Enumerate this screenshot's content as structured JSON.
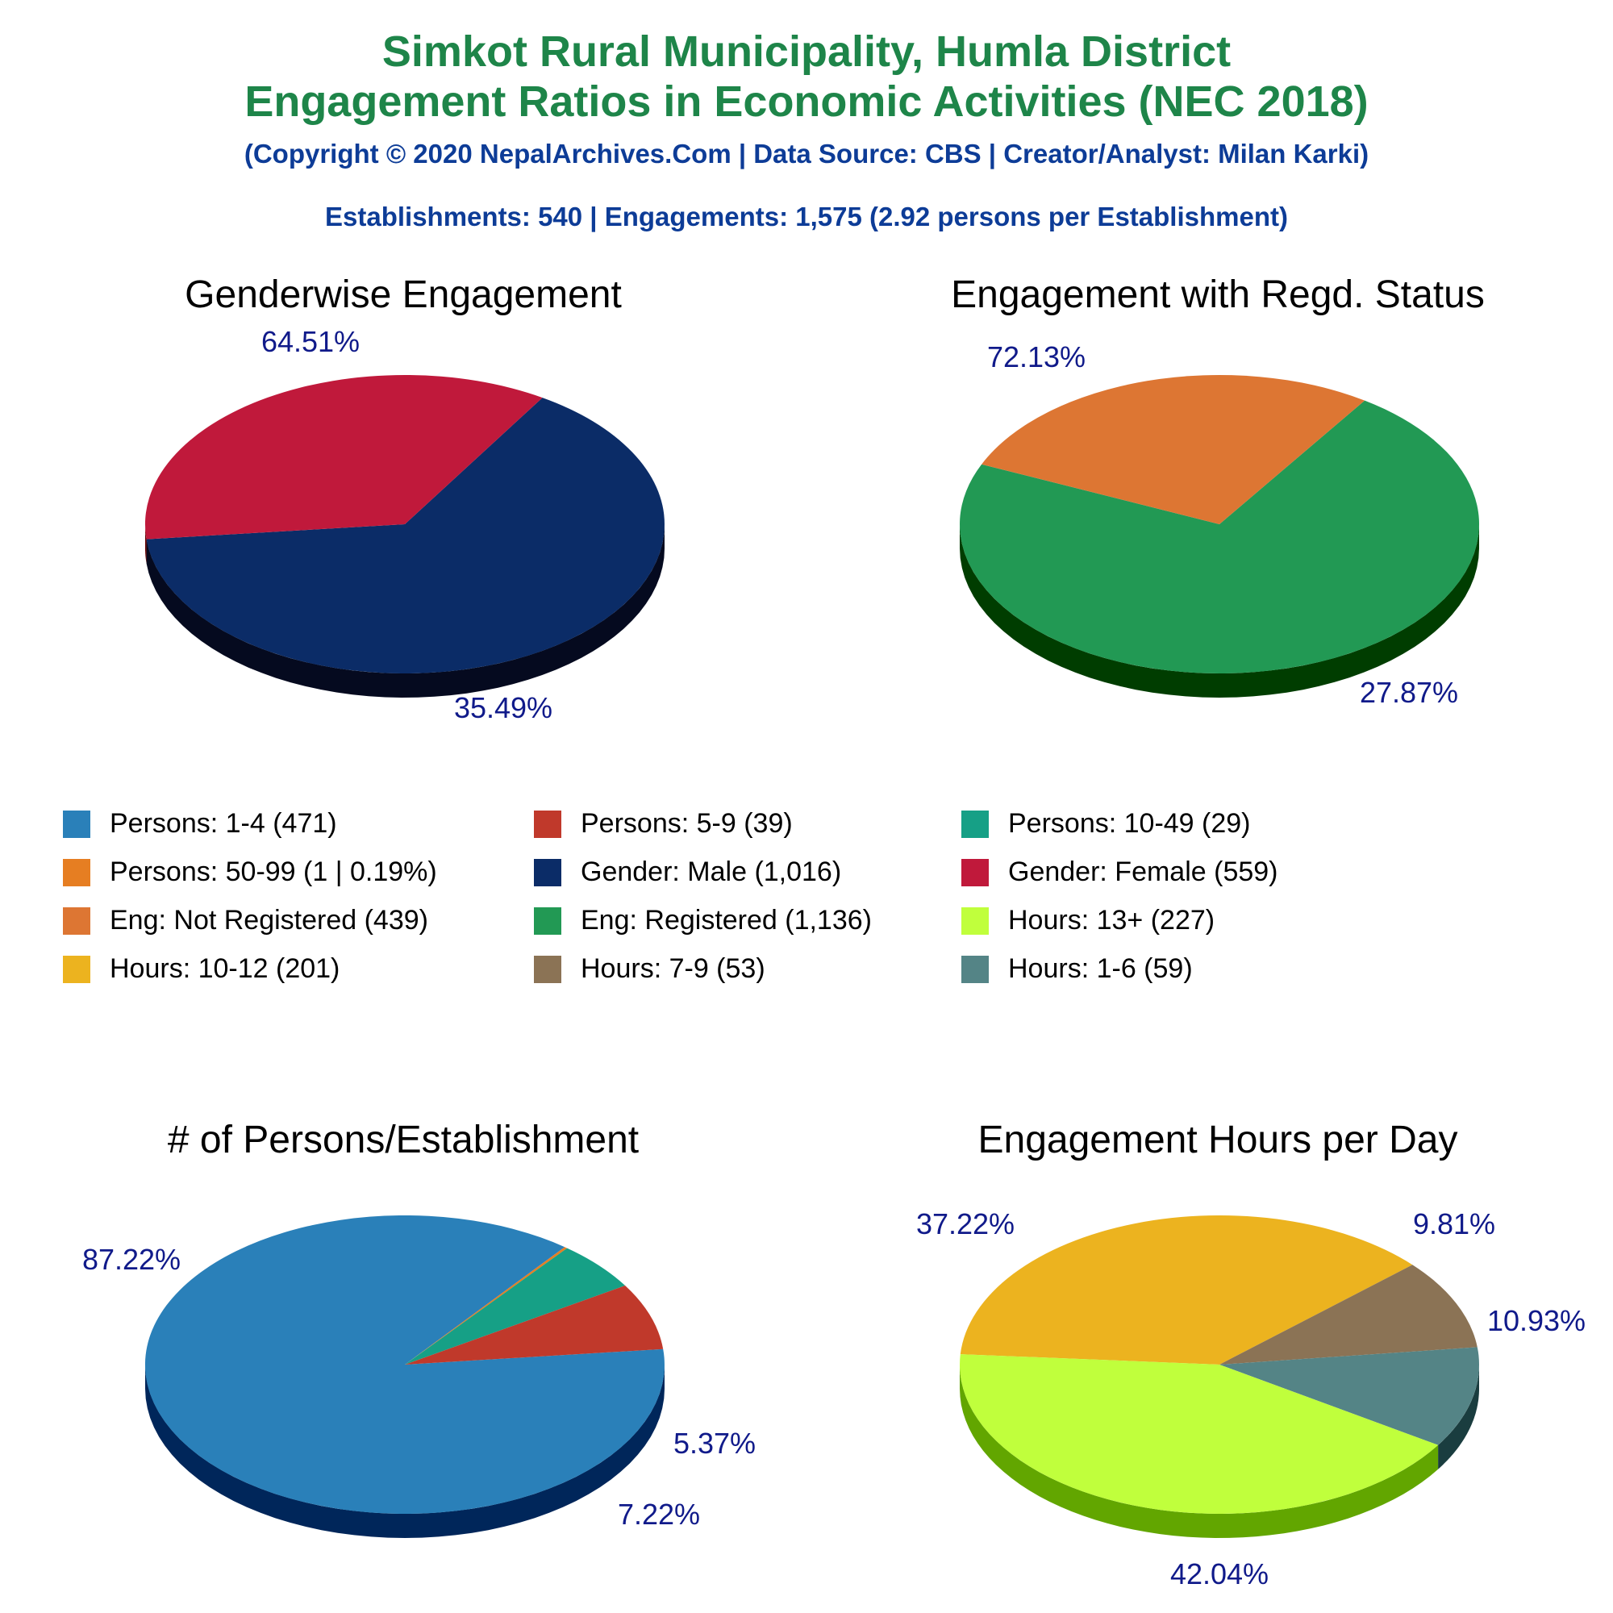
{
  "header": {
    "title_line1": "Simkot Rural Municipality, Humla District",
    "title_line2": "Engagement Ratios in Economic Activities (NEC 2018)",
    "copyright": "(Copyright © 2020 NepalArchives.Com | Data Source: CBS | Creator/Analyst: Milan Karki)",
    "summary": "Establishments: 540 | Engagements: 1,575 (2.92 persons per Establishment)"
  },
  "legend": [
    {
      "label": "Persons: 1-4 (471)",
      "color": "#2a80b9"
    },
    {
      "label": "Persons: 5-9 (39)",
      "color": "#c0392b"
    },
    {
      "label": "Persons: 10-49 (29)",
      "color": "#16a086"
    },
    {
      "label": "Persons: 50-99 (1 | 0.19%)",
      "color": "#e67e22"
    },
    {
      "label": "Gender: Male (1,016)",
      "color": "#0b2c67"
    },
    {
      "label": "Gender: Female (559)",
      "color": "#c0193b"
    },
    {
      "label": "Eng: Not Registered (439)",
      "color": "#dd7633"
    },
    {
      "label": "Eng: Registered (1,136)",
      "color": "#229954"
    },
    {
      "label": "Hours: 13+ (227)",
      "color": "#c0ff3c"
    },
    {
      "label": "Hours: 10-12 (201)",
      "color": "#ecb31f"
    },
    {
      "label": "Hours: 7-9 (53)",
      "color": "#8b7355"
    },
    {
      "label": "Hours: 1-6 (59)",
      "color": "#548486"
    }
  ],
  "chart_data": [
    {
      "type": "pie",
      "title": "Genderwise Engagement",
      "slices": [
        {
          "name": "Gender: Male",
          "value": 64.51,
          "label": "64.51%",
          "color": "#0b2c67",
          "side": "#050a1f"
        },
        {
          "name": "Gender: Female",
          "value": 35.49,
          "label": "35.49%",
          "color": "#c0193b",
          "side": "#620000"
        }
      ]
    },
    {
      "type": "pie",
      "title": "Engagement with Regd. Status",
      "slices": [
        {
          "name": "Eng: Registered",
          "value": 72.13,
          "label": "72.13%",
          "color": "#229954",
          "side": "#003d00"
        },
        {
          "name": "Eng: Not Registered",
          "value": 27.87,
          "label": "27.87%",
          "color": "#dd7633",
          "side": "#801a00"
        }
      ]
    },
    {
      "type": "pie",
      "title": "# of Persons/Establishment",
      "slices": [
        {
          "name": "Persons: 1-4",
          "value": 87.22,
          "label": "87.22%",
          "color": "#2a80b9",
          "side": "#00265a"
        },
        {
          "name": "Persons: 50-99",
          "value": 0.19,
          "label": "",
          "color": "#e67e22",
          "side": "#7a3500"
        },
        {
          "name": "Persons: 10-49",
          "value": 5.37,
          "label": "5.37%",
          "color": "#16a086",
          "side": "#003d2a"
        },
        {
          "name": "Persons: 5-9",
          "value": 7.22,
          "label": "7.22%",
          "color": "#c0392b",
          "side": "#620000"
        }
      ]
    },
    {
      "type": "pie",
      "title": "Engagement Hours per Day",
      "slices": [
        {
          "name": "Hours: 10-12",
          "value": 37.22,
          "label": "37.22%",
          "color": "#ecb31f",
          "side": "#8a5a00"
        },
        {
          "name": "Hours: 7-9",
          "value": 9.81,
          "label": "9.81%",
          "color": "#8b7355",
          "side": "#3d2a10"
        },
        {
          "name": "Hours: 1-6",
          "value": 10.93,
          "label": "10.93%",
          "color": "#548486",
          "side": "#1a3d3f"
        },
        {
          "name": "Hours: 13+",
          "value": 42.04,
          "label": "42.04%",
          "color": "#c0ff3c",
          "side": "#62a600"
        }
      ]
    }
  ]
}
